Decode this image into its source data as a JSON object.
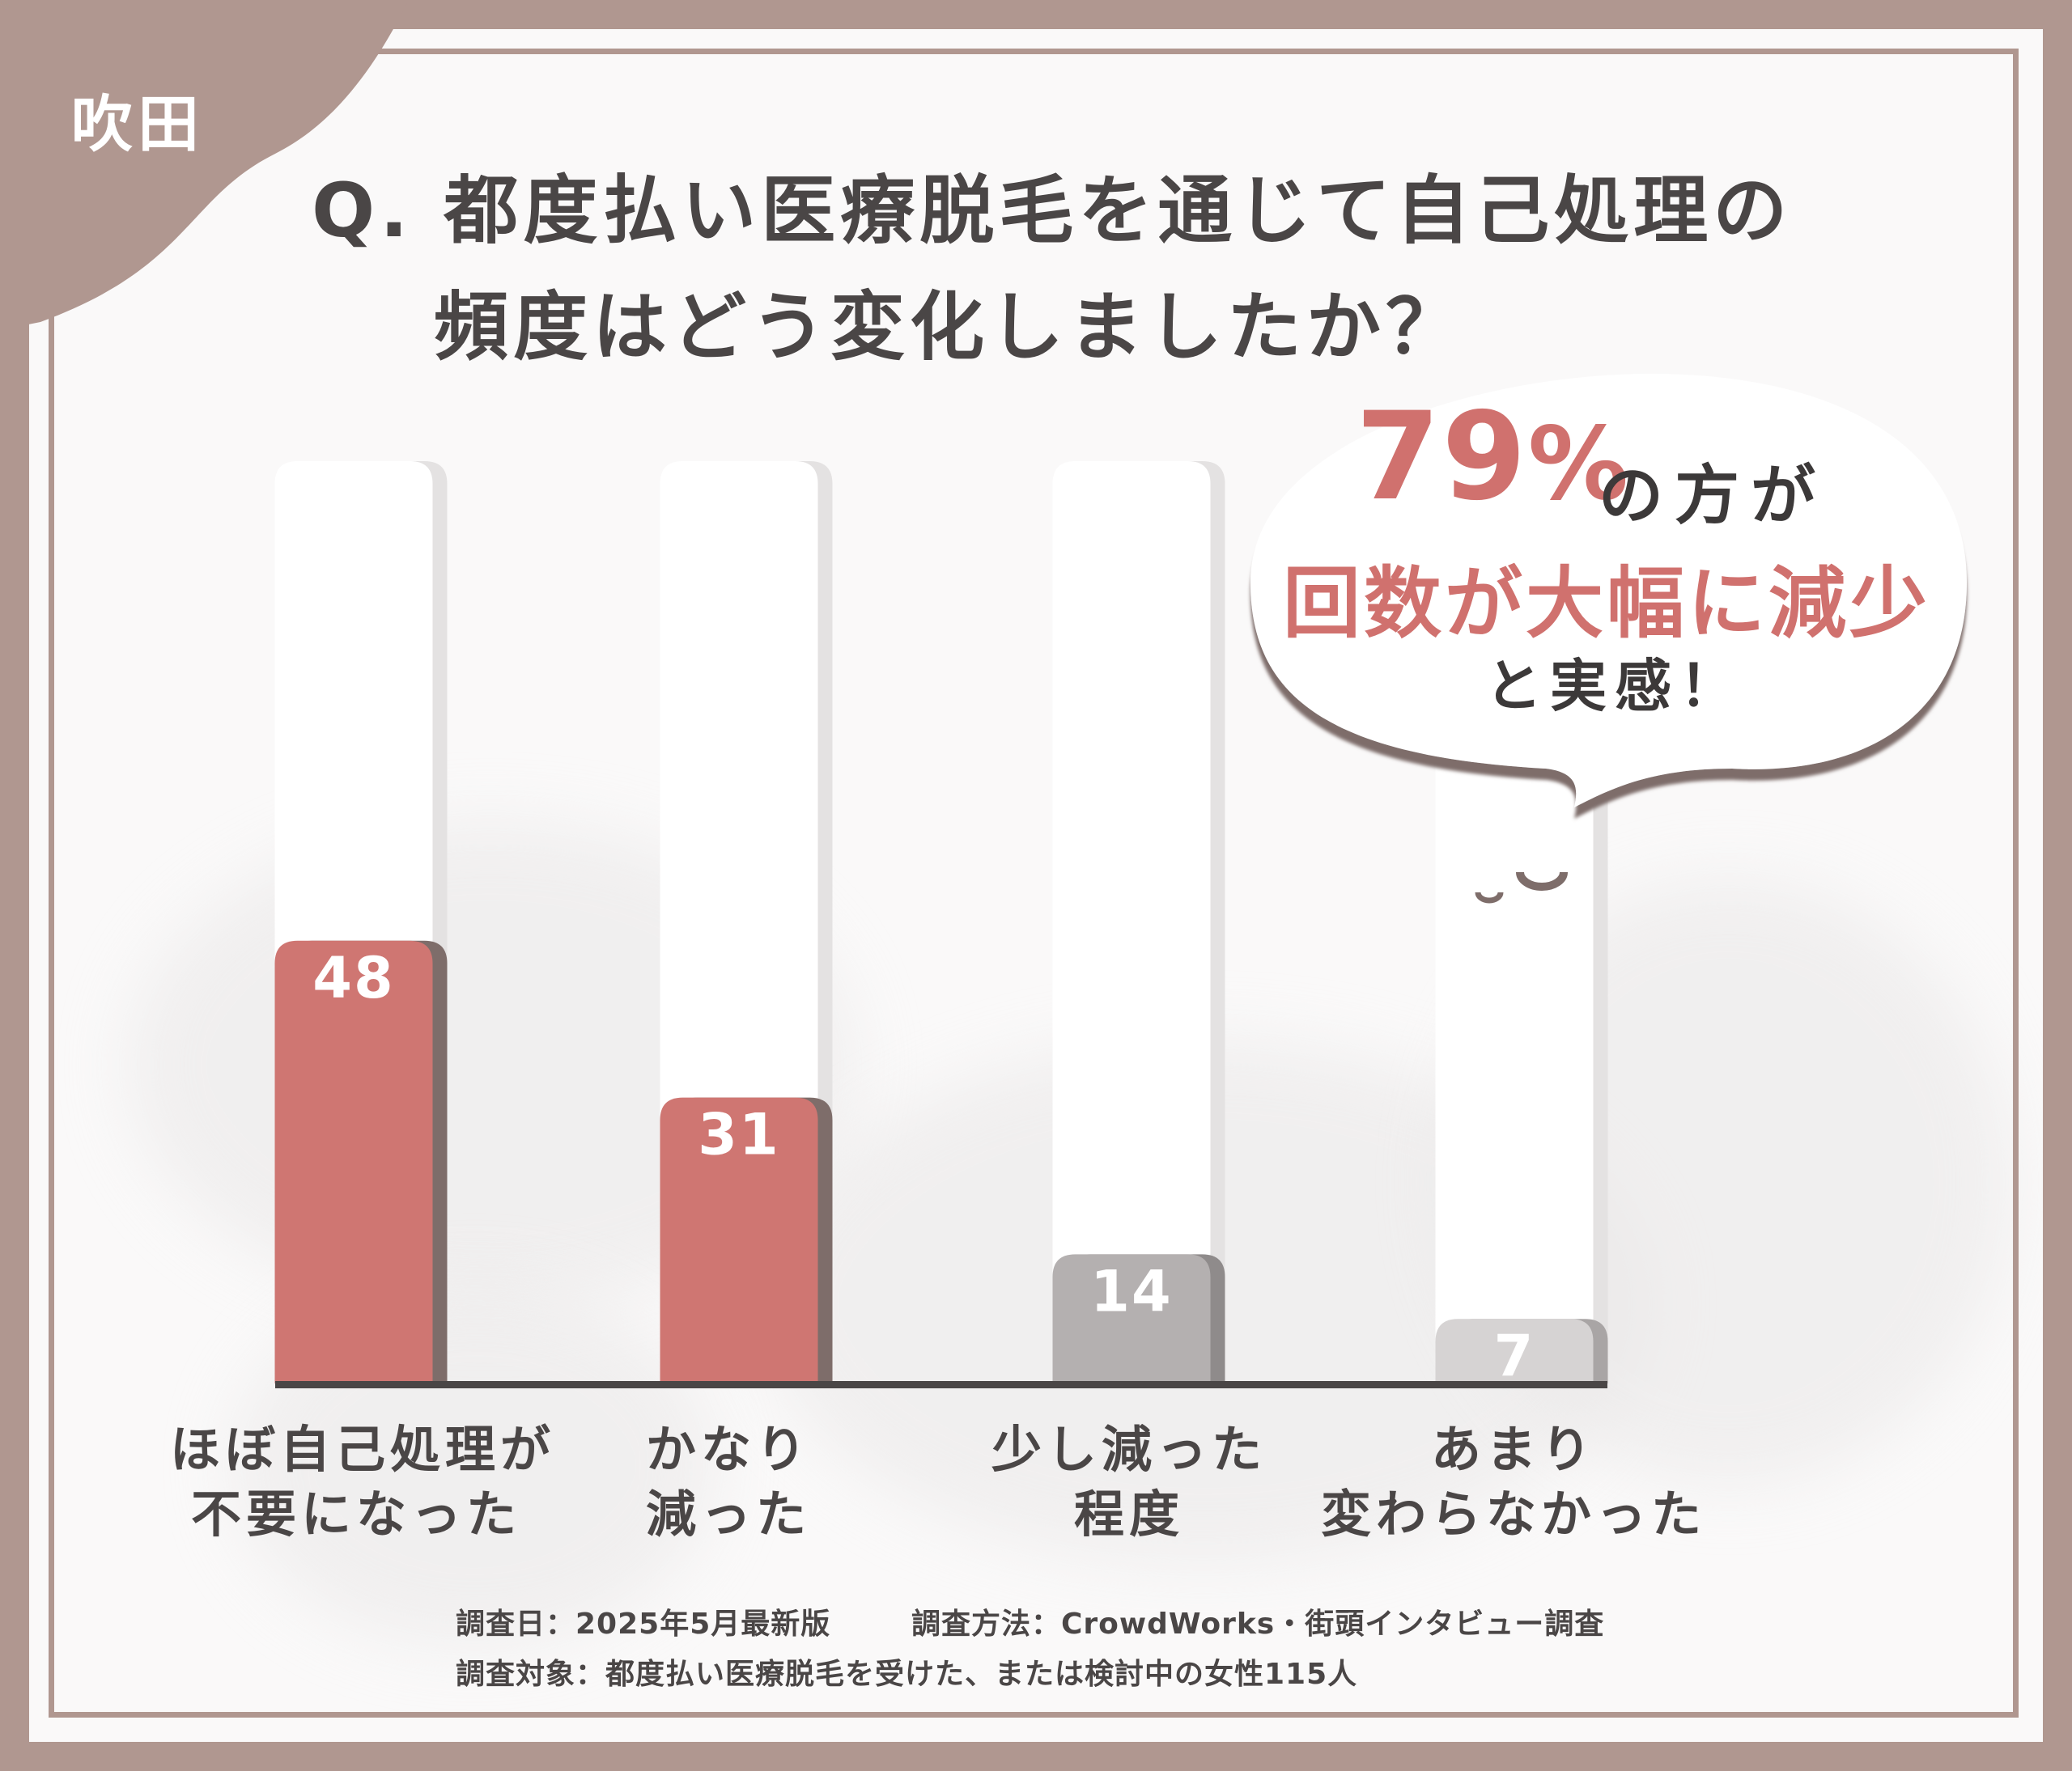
{
  "badge": {
    "area": "吹田"
  },
  "question": {
    "line1": "Q. 都度払い医療脱毛を通じて自己処理の",
    "line2": "頻度はどう変化しましたか？"
  },
  "callout": {
    "percent": "79",
    "percent_sign": "%",
    "line1": "の方が",
    "line2": "回数が大幅に減少",
    "line3": "と実感！"
  },
  "categories": [
    {
      "line1": "ほぼ自己処理が",
      "line2": "不要になった"
    },
    {
      "line1": "かなり",
      "line2": "減った"
    },
    {
      "line1": "少し減った",
      "line2": "程度"
    },
    {
      "line1": "あまり",
      "line2": "変わらなかった"
    }
  ],
  "footer": {
    "date": "調査日：2025年5月最新版",
    "method": "調査方法：CrowdWorks・街頭インタビュー調査",
    "target": "調査対象：都度払い医療脱毛を受けた、または検討中の女性115人"
  },
  "chart_data": {
    "type": "bar",
    "categories": [
      "ほぼ自己処理が不要になった",
      "かなり減った",
      "少し減った程度",
      "あまり変わらなかった"
    ],
    "values": [
      48,
      31,
      14,
      7
    ],
    "ylim": [
      0,
      100
    ],
    "grid": false,
    "legend": "none",
    "colors": [
      "#cf7672",
      "#cf7672",
      "#b4b0b0",
      "#d6d3d3"
    ],
    "shadow_colors": [
      "#7e6d6a",
      "#7e6d6a",
      "#8f8b8b",
      "#a9a5a5"
    ],
    "label_colors": [
      "#ffffff",
      "#ffffff",
      "#ffffff",
      "#ffffff"
    ],
    "track_color": "#ffffff",
    "axis_color": "#4a4646"
  }
}
